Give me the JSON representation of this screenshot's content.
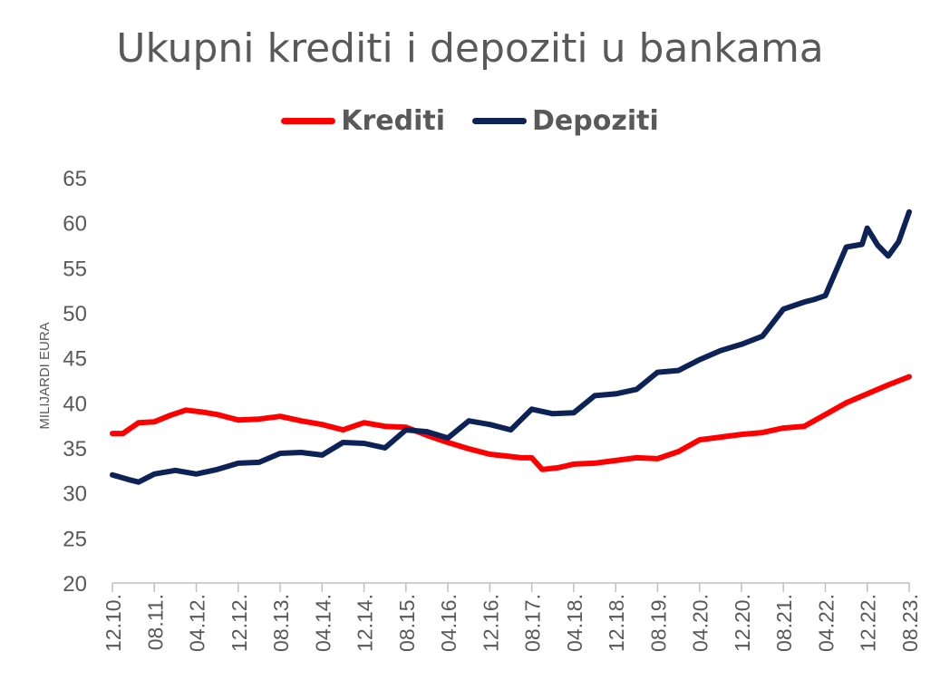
{
  "chart_data": {
    "type": "line",
    "title": "Ukupni krediti i depoziti u bankama",
    "xlabel": "",
    "ylabel": "MILIJARDI EURA",
    "ylim": [
      20,
      65
    ],
    "yticks": [
      20,
      25,
      30,
      35,
      40,
      45,
      50,
      55,
      60,
      65
    ],
    "grid": false,
    "legend_position": "top-center",
    "x_start": "2010-12",
    "x_end": "2023-08",
    "x_tick_labels": [
      "12.10.",
      "08.11.",
      "04.12.",
      "12.12.",
      "08.13.",
      "04.14.",
      "12.14.",
      "08.15.",
      "04.16.",
      "12.16.",
      "08.17.",
      "04.18.",
      "12.18.",
      "08.19.",
      "04.20.",
      "12.20.",
      "08.21.",
      "04.22.",
      "12.22.",
      "08.23."
    ],
    "series": [
      {
        "name": "Krediti",
        "color": "#ff0000",
        "points": [
          [
            "2010-12",
            36.6
          ],
          [
            "2011-02",
            36.6
          ],
          [
            "2011-05",
            37.8
          ],
          [
            "2011-08",
            37.9
          ],
          [
            "2011-11",
            38.6
          ],
          [
            "2012-02",
            39.2
          ],
          [
            "2012-05",
            39.0
          ],
          [
            "2012-08",
            38.7
          ],
          [
            "2012-12",
            38.1
          ],
          [
            "2013-04",
            38.2
          ],
          [
            "2013-08",
            38.5
          ],
          [
            "2013-12",
            38.0
          ],
          [
            "2014-04",
            37.6
          ],
          [
            "2014-08",
            37.0
          ],
          [
            "2014-12",
            37.8
          ],
          [
            "2015-04",
            37.4
          ],
          [
            "2015-08",
            37.3
          ],
          [
            "2015-12",
            36.4
          ],
          [
            "2016-04",
            35.6
          ],
          [
            "2016-08",
            34.9
          ],
          [
            "2016-12",
            34.3
          ],
          [
            "2017-03",
            34.1
          ],
          [
            "2017-06",
            33.9
          ],
          [
            "2017-08",
            33.9
          ],
          [
            "2017-10",
            32.6
          ],
          [
            "2018-01",
            32.8
          ],
          [
            "2018-04",
            33.2
          ],
          [
            "2018-08",
            33.3
          ],
          [
            "2018-12",
            33.6
          ],
          [
            "2019-04",
            33.9
          ],
          [
            "2019-08",
            33.8
          ],
          [
            "2019-12",
            34.6
          ],
          [
            "2020-04",
            35.9
          ],
          [
            "2020-08",
            36.2
          ],
          [
            "2020-12",
            36.5
          ],
          [
            "2021-04",
            36.7
          ],
          [
            "2021-08",
            37.2
          ],
          [
            "2021-12",
            37.4
          ],
          [
            "2022-04",
            38.7
          ],
          [
            "2022-08",
            40.0
          ],
          [
            "2022-12",
            41.0
          ],
          [
            "2023-04",
            42.0
          ],
          [
            "2023-08",
            42.9
          ]
        ]
      },
      {
        "name": "Depoziti",
        "color": "#0d2257",
        "points": [
          [
            "2010-12",
            32.0
          ],
          [
            "2011-03",
            31.5
          ],
          [
            "2011-05",
            31.2
          ],
          [
            "2011-08",
            32.1
          ],
          [
            "2011-12",
            32.5
          ],
          [
            "2012-04",
            32.1
          ],
          [
            "2012-08",
            32.6
          ],
          [
            "2012-12",
            33.3
          ],
          [
            "2013-04",
            33.4
          ],
          [
            "2013-08",
            34.4
          ],
          [
            "2013-12",
            34.5
          ],
          [
            "2014-04",
            34.2
          ],
          [
            "2014-08",
            35.6
          ],
          [
            "2014-12",
            35.5
          ],
          [
            "2015-04",
            35.0
          ],
          [
            "2015-08",
            37.0
          ],
          [
            "2015-12",
            36.8
          ],
          [
            "2016-04",
            36.1
          ],
          [
            "2016-08",
            38.0
          ],
          [
            "2016-12",
            37.6
          ],
          [
            "2017-04",
            37.0
          ],
          [
            "2017-08",
            39.3
          ],
          [
            "2017-12",
            38.8
          ],
          [
            "2018-04",
            38.9
          ],
          [
            "2018-08",
            40.8
          ],
          [
            "2018-12",
            41.0
          ],
          [
            "2019-04",
            41.5
          ],
          [
            "2019-08",
            43.4
          ],
          [
            "2019-12",
            43.6
          ],
          [
            "2020-04",
            44.8
          ],
          [
            "2020-08",
            45.8
          ],
          [
            "2020-12",
            46.5
          ],
          [
            "2021-04",
            47.4
          ],
          [
            "2021-08",
            50.4
          ],
          [
            "2021-12",
            51.2
          ],
          [
            "2022-02",
            51.5
          ],
          [
            "2022-04",
            51.9
          ],
          [
            "2022-08",
            57.3
          ],
          [
            "2022-11",
            57.6
          ],
          [
            "2022-12",
            59.4
          ],
          [
            "2023-02",
            57.5
          ],
          [
            "2023-04",
            56.3
          ],
          [
            "2023-06",
            57.9
          ],
          [
            "2023-08",
            61.2
          ]
        ]
      }
    ]
  }
}
